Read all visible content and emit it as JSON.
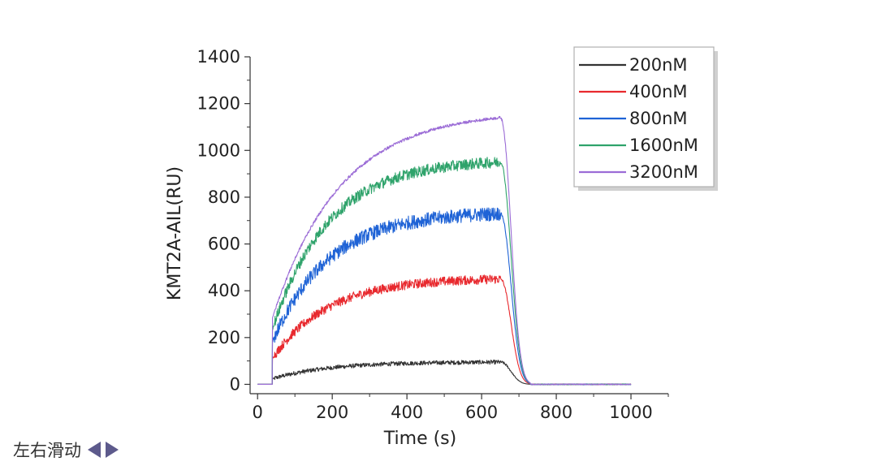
{
  "chart_data": {
    "type": "line",
    "title": "",
    "xlabel": "Time (s)",
    "ylabel": "KMT2A-AIL(RU)",
    "xlim": [
      -20,
      1100
    ],
    "ylim": [
      -40,
      1400
    ],
    "x_ticks": [
      0,
      200,
      400,
      600,
      800,
      1000
    ],
    "y_ticks": [
      0,
      200,
      400,
      600,
      800,
      1000,
      1200,
      1400
    ],
    "grid": false,
    "legend_position": "top-right",
    "association_start": 40,
    "dissociation_start": 650,
    "x_end": 1000,
    "series": [
      {
        "name": "200nM",
        "color": "#333333",
        "plateau": 95,
        "noise": 9
      },
      {
        "name": "400nM",
        "color": "#e8292e",
        "plateau": 450,
        "noise": 20
      },
      {
        "name": "800nM",
        "color": "#1f63d6",
        "plateau": 730,
        "noise": 30
      },
      {
        "name": "1600nM",
        "color": "#2fa36b",
        "plateau": 950,
        "noise": 24
      },
      {
        "name": "3200nM",
        "color": "#9b6cd6",
        "plateau": 1140,
        "noise": 6
      }
    ]
  },
  "ui": {
    "swipe_hint": "左右滑动"
  }
}
